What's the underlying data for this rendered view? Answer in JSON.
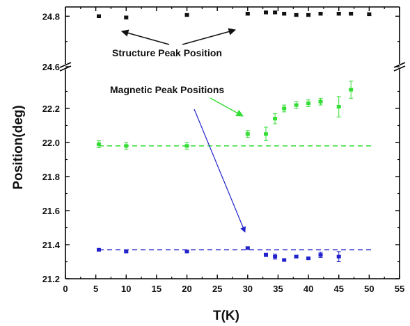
{
  "chart_data": {
    "type": "scatter",
    "xlabel": "T(K)",
    "ylabel": "Position(deg)",
    "xlim": [
      0,
      55
    ],
    "x_ticks": [
      "0",
      "5",
      "10",
      "15",
      "20",
      "25",
      "30",
      "35",
      "40",
      "45",
      "50",
      "55"
    ],
    "axis_break": "y",
    "y_lower_range": [
      21.2,
      22.4
    ],
    "y_lower_ticks": [
      "21.2",
      "21.4",
      "21.6",
      "21.8",
      "22.0",
      "22.2"
    ],
    "y_upper_range": [
      24.6,
      24.9
    ],
    "y_upper_ticks": [
      "24.6",
      "24.8"
    ],
    "grid": false,
    "legend": "none",
    "annotations": [
      {
        "text": "Structure Peak Position"
      },
      {
        "text": "Magnetic Peak Positions"
      }
    ],
    "series": [
      {
        "color": "#111111",
        "segment": "upper",
        "x": [
          5.5,
          10,
          20,
          30,
          33,
          34.5,
          36,
          38,
          40,
          42,
          45,
          47,
          50
        ],
        "y": [
          24.8,
          24.795,
          24.805,
          24.81,
          24.815,
          24.815,
          24.81,
          24.805,
          24.805,
          24.81,
          24.81,
          24.81,
          24.808
        ],
        "err": [
          0.006,
          0.006,
          0.006,
          0.006,
          0.006,
          0.006,
          0.006,
          0.006,
          0.006,
          0.006,
          0.006,
          0.006,
          0.006
        ]
      },
      {
        "color": "#33dd33",
        "segment": "lower",
        "x": [
          5.5,
          10,
          20,
          30,
          33,
          34.5,
          36,
          38,
          40,
          42,
          45,
          47
        ],
        "y": [
          21.99,
          21.98,
          21.98,
          22.05,
          22.05,
          22.14,
          22.2,
          22.22,
          22.23,
          22.24,
          22.21,
          22.31
        ],
        "err": [
          0.02,
          0.02,
          0.02,
          0.02,
          0.04,
          0.03,
          0.02,
          0.02,
          0.02,
          0.02,
          0.06,
          0.05
        ],
        "reference_line": 21.98
      },
      {
        "color": "#2222cc",
        "segment": "lower",
        "x": [
          5.5,
          10,
          20,
          30,
          33,
          34.5,
          36,
          38,
          40,
          42,
          45
        ],
        "y": [
          21.37,
          21.36,
          21.36,
          21.38,
          21.34,
          21.33,
          21.31,
          21.33,
          21.32,
          21.34,
          21.33
        ],
        "err": [
          0.008,
          0.008,
          0.008,
          0.008,
          0.01,
          0.015,
          0.008,
          0.008,
          0.008,
          0.015,
          0.03
        ],
        "reference_line": 21.37
      }
    ]
  }
}
